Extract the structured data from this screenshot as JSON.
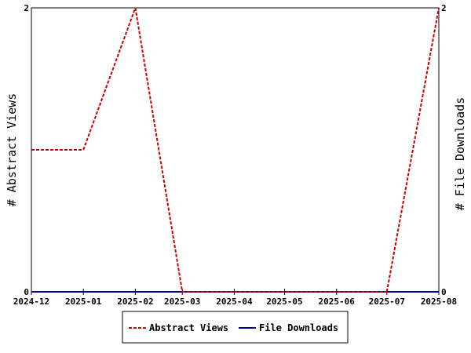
{
  "chart_data": {
    "type": "line",
    "x": [
      "2024-12",
      "2025-01",
      "2025-02",
      "2025-03",
      "2025-04",
      "2025-05",
      "2025-06",
      "2025-07",
      "2025-08"
    ],
    "x_dates": [
      "2024-12-01",
      "2025-01-01",
      "2025-02-01",
      "2025-03-01",
      "2025-04-01",
      "2025-05-01",
      "2025-06-01",
      "2025-07-01",
      "2025-08-01"
    ],
    "series": [
      {
        "name": "Abstract Views",
        "axis": "left",
        "color": "#cc0000",
        "dash": "dashed",
        "points": [
          {
            "x": "2024-12-01",
            "y": 1
          },
          {
            "x": "2025-01-01",
            "y": 1
          },
          {
            "x": "2025-02-01",
            "y": 2
          },
          {
            "x": "2025-03-01",
            "y": 0
          },
          {
            "x": "2025-07-01",
            "y": 0
          },
          {
            "x": "2025-08-01",
            "y": 2
          }
        ]
      },
      {
        "name": "File Downloads",
        "axis": "right",
        "color": "#000099",
        "dash": "solid",
        "points": [
          {
            "x": "2024-12-01",
            "y": 0
          },
          {
            "x": "2025-08-01",
            "y": 0
          }
        ]
      }
    ],
    "ylabel_left": "# Abstract Views",
    "ylabel_right": "# File Downloads",
    "ylim_left": [
      0,
      2
    ],
    "ylim_right": [
      0,
      2
    ],
    "yticks_left": [
      "0",
      "2"
    ],
    "yticks_right": [
      "0",
      "2"
    ],
    "grid": false,
    "legend_position": "bottom-center"
  }
}
